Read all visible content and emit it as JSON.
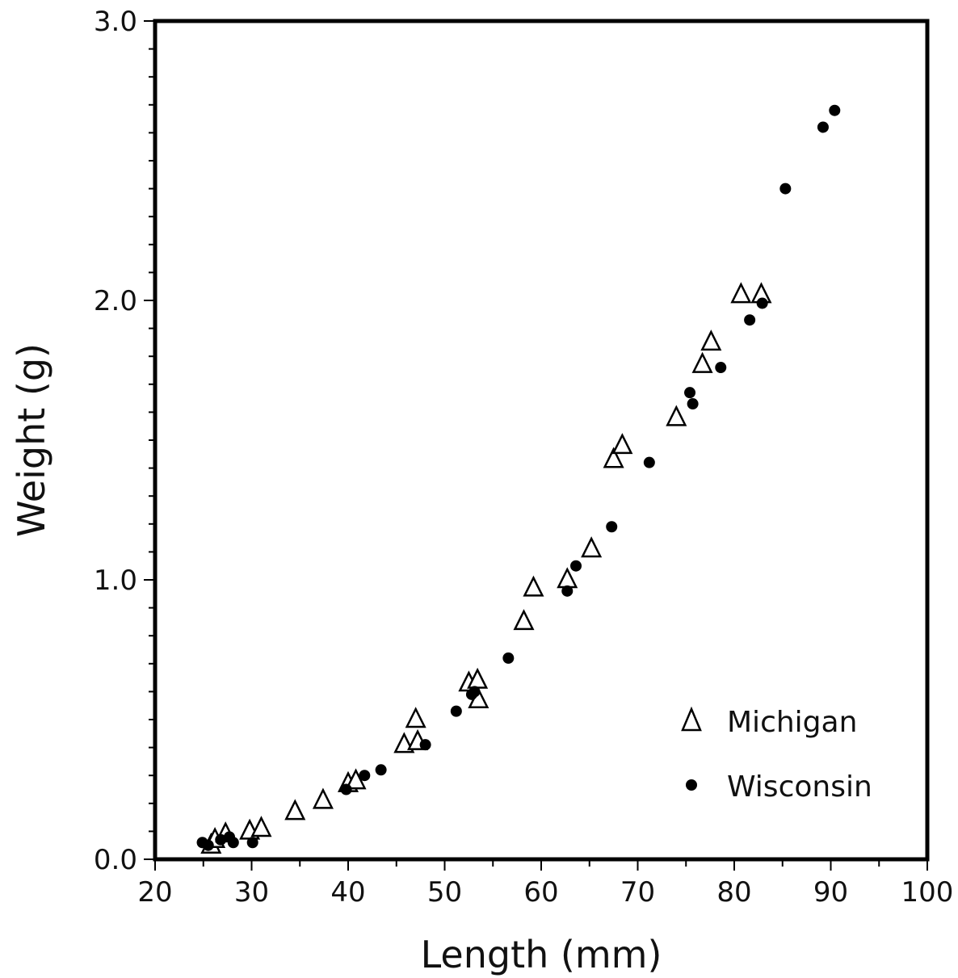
{
  "chart_data": {
    "type": "scatter",
    "xlabel": "Length (mm)",
    "ylabel": "Weight (g)",
    "xlim": [
      20,
      100
    ],
    "ylim": [
      0,
      3.0
    ],
    "x_ticks": [
      20,
      30,
      40,
      50,
      60,
      70,
      80,
      90,
      100
    ],
    "x_tick_labels": [
      "20",
      "30",
      "40",
      "50",
      "60",
      "70",
      "80",
      "90",
      "100"
    ],
    "y_ticks": [
      0,
      1,
      2,
      3
    ],
    "y_tick_labels": [
      "0.0",
      "1.0",
      "2.0",
      "3.0"
    ],
    "grid": false,
    "legend_position": "lower-right",
    "series": [
      {
        "name": "Michigan",
        "marker": "open-triangle",
        "points": [
          [
            25.8,
            0.05
          ],
          [
            26.2,
            0.07
          ],
          [
            27.3,
            0.09
          ],
          [
            29.8,
            0.1
          ],
          [
            31.0,
            0.11
          ],
          [
            34.5,
            0.17
          ],
          [
            37.4,
            0.21
          ],
          [
            40.0,
            0.27
          ],
          [
            40.8,
            0.28
          ],
          [
            45.8,
            0.41
          ],
          [
            47.0,
            0.5
          ],
          [
            47.2,
            0.42
          ],
          [
            52.5,
            0.63
          ],
          [
            53.4,
            0.64
          ],
          [
            53.5,
            0.57
          ],
          [
            58.2,
            0.85
          ],
          [
            59.2,
            0.97
          ],
          [
            62.7,
            1.0
          ],
          [
            65.2,
            1.11
          ],
          [
            67.5,
            1.43
          ],
          [
            68.4,
            1.48
          ],
          [
            74.0,
            1.58
          ],
          [
            76.7,
            1.77
          ],
          [
            77.6,
            1.85
          ],
          [
            80.7,
            2.02
          ],
          [
            82.8,
            2.02
          ]
        ]
      },
      {
        "name": "Wisconsin",
        "marker": "filled-circle",
        "points": [
          [
            24.9,
            0.06
          ],
          [
            25.5,
            0.05
          ],
          [
            26.8,
            0.07
          ],
          [
            27.7,
            0.08
          ],
          [
            28.1,
            0.06
          ],
          [
            30.1,
            0.06
          ],
          [
            39.8,
            0.25
          ],
          [
            41.7,
            0.3
          ],
          [
            43.4,
            0.32
          ],
          [
            48.0,
            0.41
          ],
          [
            51.2,
            0.53
          ],
          [
            52.8,
            0.59
          ],
          [
            53.1,
            0.6
          ],
          [
            56.6,
            0.72
          ],
          [
            62.7,
            0.96
          ],
          [
            63.6,
            1.05
          ],
          [
            67.3,
            1.19
          ],
          [
            71.2,
            1.42
          ],
          [
            75.4,
            1.67
          ],
          [
            75.7,
            1.63
          ],
          [
            78.6,
            1.76
          ],
          [
            81.6,
            1.93
          ],
          [
            82.9,
            1.99
          ],
          [
            85.3,
            2.4
          ],
          [
            89.2,
            2.62
          ],
          [
            90.4,
            2.68
          ]
        ]
      }
    ],
    "legend": [
      {
        "label": "Michigan",
        "marker": "open-triangle"
      },
      {
        "label": "Wisconsin",
        "marker": "filled-circle"
      }
    ]
  }
}
